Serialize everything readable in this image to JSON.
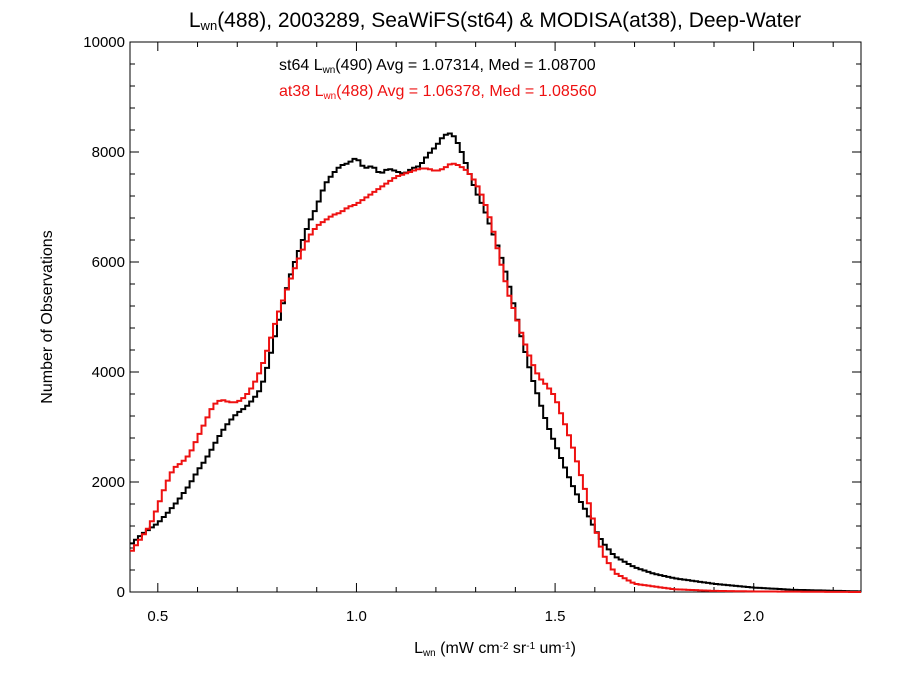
{
  "chart_data": {
    "type": "line",
    "title": {
      "parts": [
        {
          "text": "L"
        },
        {
          "text": "wn",
          "sub": true
        },
        {
          "text": "(488), 2003289, SeaWiFS(st64) & MODISA(at38), Deep-Water"
        }
      ]
    },
    "xlabel": {
      "parts": [
        {
          "text": "L"
        },
        {
          "text": "wn",
          "sub": true
        },
        {
          "text": " (mW cm"
        },
        {
          "text": "-2",
          "sup": true
        },
        {
          "text": " sr"
        },
        {
          "text": "-1",
          "sup": true
        },
        {
          "text": " um"
        },
        {
          "text": "-1",
          "sup": true
        },
        {
          "text": ")"
        }
      ]
    },
    "ylabel": "Number of Observations",
    "xlim": [
      0.43,
      2.27
    ],
    "ylim": [
      0,
      10000
    ],
    "xticks": [
      0.5,
      1.0,
      1.5,
      2.0
    ],
    "xtick_labels": [
      "0.5",
      "1.0",
      "1.5",
      "2.0"
    ],
    "yticks": [
      0,
      2000,
      4000,
      6000,
      8000,
      10000
    ],
    "ytick_labels": [
      "0",
      "2000",
      "4000",
      "6000",
      "8000",
      "10000"
    ],
    "grid": false,
    "legend_position": "top-center",
    "series": [
      {
        "label_parts": [
          {
            "text": "st64 L"
          },
          {
            "text": "wn",
            "sub": true
          },
          {
            "text": "(490) Avg = 1.07314, Med = 1.08700"
          }
        ],
        "color": "#000000",
        "points": [
          [
            0.43,
            850
          ],
          [
            0.46,
            1050
          ],
          [
            0.48,
            1150
          ],
          [
            0.5,
            1250
          ],
          [
            0.52,
            1400
          ],
          [
            0.55,
            1650
          ],
          [
            0.58,
            1950
          ],
          [
            0.6,
            2200
          ],
          [
            0.62,
            2400
          ],
          [
            0.64,
            2650
          ],
          [
            0.66,
            2900
          ],
          [
            0.68,
            3100
          ],
          [
            0.7,
            3250
          ],
          [
            0.72,
            3350
          ],
          [
            0.74,
            3500
          ],
          [
            0.76,
            3700
          ],
          [
            0.78,
            4200
          ],
          [
            0.8,
            4800
          ],
          [
            0.82,
            5400
          ],
          [
            0.84,
            5900
          ],
          [
            0.86,
            6300
          ],
          [
            0.88,
            6700
          ],
          [
            0.9,
            7000
          ],
          [
            0.92,
            7400
          ],
          [
            0.94,
            7600
          ],
          [
            0.96,
            7750
          ],
          [
            0.98,
            7800
          ],
          [
            1.0,
            7900
          ],
          [
            1.02,
            7700
          ],
          [
            1.04,
            7750
          ],
          [
            1.06,
            7600
          ],
          [
            1.08,
            7700
          ],
          [
            1.1,
            7650
          ],
          [
            1.12,
            7600
          ],
          [
            1.14,
            7700
          ],
          [
            1.16,
            7750
          ],
          [
            1.18,
            7950
          ],
          [
            1.2,
            8100
          ],
          [
            1.22,
            8300
          ],
          [
            1.24,
            8350
          ],
          [
            1.26,
            8100
          ],
          [
            1.28,
            7700
          ],
          [
            1.3,
            7300
          ],
          [
            1.32,
            7000
          ],
          [
            1.34,
            6600
          ],
          [
            1.36,
            6200
          ],
          [
            1.38,
            5700
          ],
          [
            1.4,
            5100
          ],
          [
            1.42,
            4500
          ],
          [
            1.44,
            3950
          ],
          [
            1.46,
            3500
          ],
          [
            1.48,
            3050
          ],
          [
            1.5,
            2700
          ],
          [
            1.52,
            2350
          ],
          [
            1.54,
            2000
          ],
          [
            1.56,
            1700
          ],
          [
            1.58,
            1450
          ],
          [
            1.6,
            1150
          ],
          [
            1.62,
            900
          ],
          [
            1.65,
            650
          ],
          [
            1.7,
            450
          ],
          [
            1.75,
            330
          ],
          [
            1.8,
            250
          ],
          [
            1.9,
            150
          ],
          [
            2.0,
            80
          ],
          [
            2.1,
            40
          ],
          [
            2.27,
            10
          ]
        ]
      },
      {
        "label_parts": [
          {
            "text": "at38 L"
          },
          {
            "text": "wn",
            "sub": true
          },
          {
            "text": "(488) Avg = 1.06378, Med = 1.08560"
          }
        ],
        "color": "#ee1111",
        "points": [
          [
            0.43,
            700
          ],
          [
            0.46,
            1000
          ],
          [
            0.48,
            1200
          ],
          [
            0.5,
            1550
          ],
          [
            0.52,
            1950
          ],
          [
            0.54,
            2250
          ],
          [
            0.56,
            2350
          ],
          [
            0.58,
            2500
          ],
          [
            0.6,
            2800
          ],
          [
            0.62,
            3100
          ],
          [
            0.64,
            3400
          ],
          [
            0.66,
            3500
          ],
          [
            0.68,
            3450
          ],
          [
            0.7,
            3450
          ],
          [
            0.72,
            3550
          ],
          [
            0.74,
            3750
          ],
          [
            0.76,
            4050
          ],
          [
            0.78,
            4500
          ],
          [
            0.8,
            5000
          ],
          [
            0.82,
            5400
          ],
          [
            0.84,
            5800
          ],
          [
            0.86,
            6150
          ],
          [
            0.88,
            6450
          ],
          [
            0.9,
            6650
          ],
          [
            0.92,
            6750
          ],
          [
            0.94,
            6850
          ],
          [
            0.96,
            6900
          ],
          [
            0.98,
            7000
          ],
          [
            1.0,
            7050
          ],
          [
            1.02,
            7150
          ],
          [
            1.04,
            7250
          ],
          [
            1.06,
            7350
          ],
          [
            1.08,
            7450
          ],
          [
            1.1,
            7550
          ],
          [
            1.12,
            7600
          ],
          [
            1.14,
            7650
          ],
          [
            1.16,
            7700
          ],
          [
            1.18,
            7700
          ],
          [
            1.2,
            7650
          ],
          [
            1.22,
            7700
          ],
          [
            1.24,
            7800
          ],
          [
            1.26,
            7750
          ],
          [
            1.28,
            7650
          ],
          [
            1.3,
            7450
          ],
          [
            1.32,
            7150
          ],
          [
            1.34,
            6700
          ],
          [
            1.36,
            6100
          ],
          [
            1.38,
            5500
          ],
          [
            1.4,
            5050
          ],
          [
            1.42,
            4600
          ],
          [
            1.44,
            4200
          ],
          [
            1.46,
            3900
          ],
          [
            1.48,
            3750
          ],
          [
            1.5,
            3550
          ],
          [
            1.52,
            3150
          ],
          [
            1.54,
            2750
          ],
          [
            1.56,
            2250
          ],
          [
            1.58,
            1750
          ],
          [
            1.6,
            1200
          ],
          [
            1.62,
            700
          ],
          [
            1.65,
            350
          ],
          [
            1.7,
            150
          ],
          [
            1.8,
            50
          ],
          [
            1.9,
            20
          ],
          [
            2.0,
            10
          ],
          [
            2.27,
            0
          ]
        ]
      }
    ]
  }
}
